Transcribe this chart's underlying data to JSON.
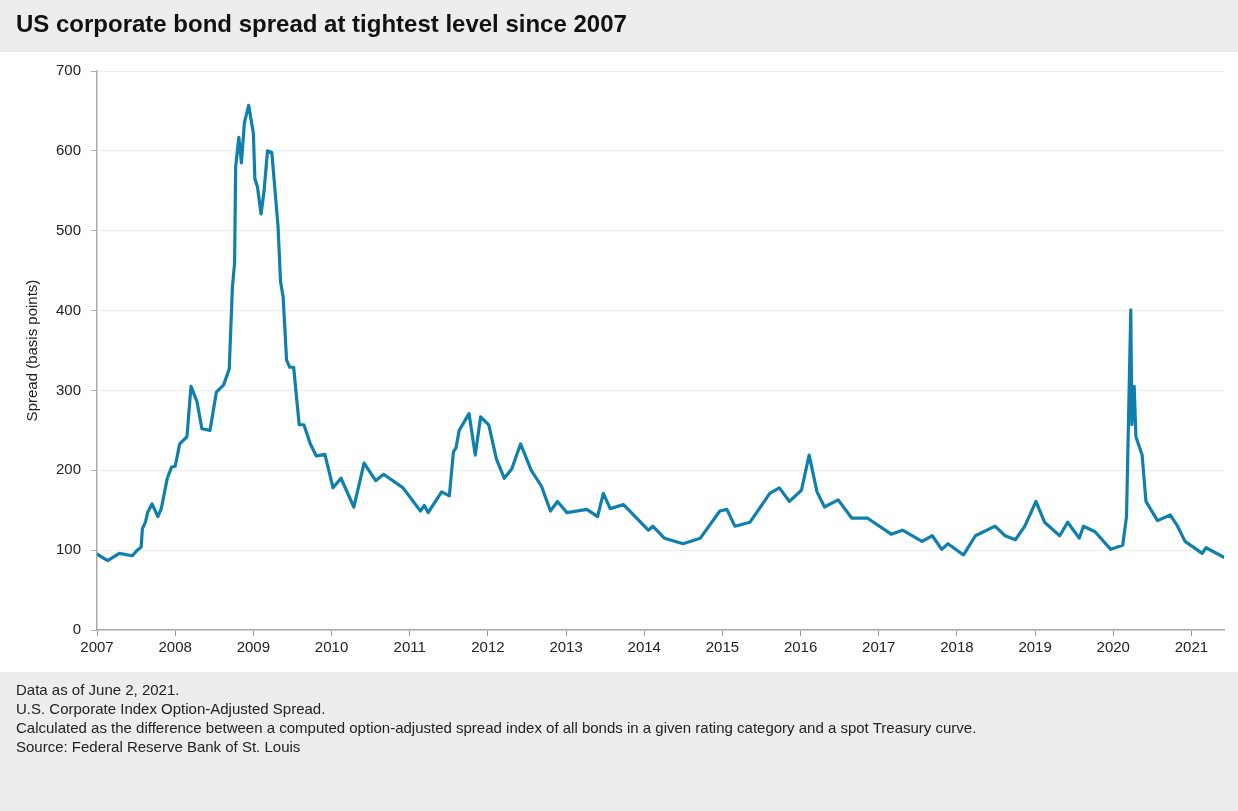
{
  "chart_data": {
    "type": "line",
    "title": "US corporate bond spread at tightest level since 2007",
    "ylabel": "Spread (basis points)",
    "x": [
      "2007-01-01",
      "2007-02-20",
      "2007-04-15",
      "2007-06-15",
      "2007-07-08",
      "2007-07-26",
      "2007-08-01",
      "2007-08-15",
      "2007-08-25",
      "2007-09-15",
      "2007-10-12",
      "2007-10-28",
      "2007-11-25",
      "2007-12-15",
      "2008-01-01",
      "2008-01-22",
      "2008-02-25",
      "2008-03-15",
      "2008-04-12",
      "2008-05-05",
      "2008-06-12",
      "2008-07-12",
      "2008-08-15",
      "2008-09-10",
      "2008-09-25",
      "2008-10-05",
      "2008-10-10",
      "2008-10-25",
      "2008-11-06",
      "2008-11-20",
      "2008-12-10",
      "2009-01-01",
      "2009-01-08",
      "2009-01-20",
      "2009-02-06",
      "2009-02-20",
      "2009-03-08",
      "2009-03-28",
      "2009-04-26",
      "2009-05-08",
      "2009-05-20",
      "2009-06-05",
      "2009-06-20",
      "2009-07-08",
      "2009-08-03",
      "2009-08-25",
      "2009-09-24",
      "2009-10-22",
      "2009-12-01",
      "2010-01-08",
      "2010-02-14",
      "2010-04-15",
      "2010-06-02",
      "2010-07-26",
      "2010-09-01",
      "2010-12-01",
      "2011-02-20",
      "2011-03-10",
      "2011-03-28",
      "2011-05-30",
      "2011-07-05",
      "2011-07-24",
      "2011-08-05",
      "2011-08-20",
      "2011-10-05",
      "2011-11-03",
      "2011-11-28",
      "2012-01-05",
      "2012-02-10",
      "2012-03-18",
      "2012-04-22",
      "2012-06-02",
      "2012-07-22",
      "2012-09-08",
      "2012-10-20",
      "2012-11-22",
      "2013-01-05",
      "2013-04-08",
      "2013-05-28",
      "2013-06-24",
      "2013-07-26",
      "2013-09-26",
      "2013-11-13",
      "2014-01-20",
      "2014-02-10",
      "2014-04-05",
      "2014-07-01",
      "2014-09-20",
      "2014-12-20",
      "2015-01-22",
      "2015-02-28",
      "2015-05-10",
      "2015-08-10",
      "2015-09-24",
      "2015-11-10",
      "2016-01-05",
      "2016-02-10",
      "2016-03-18",
      "2016-04-22",
      "2016-06-25",
      "2016-08-28",
      "2016-11-10",
      "2017-02-28",
      "2017-04-22",
      "2017-07-22",
      "2017-09-08",
      "2017-10-22",
      "2017-11-20",
      "2018-02-01",
      "2018-03-28",
      "2018-06-28",
      "2018-08-14",
      "2018-10-01",
      "2018-11-14",
      "2019-01-05",
      "2019-02-14",
      "2019-04-26",
      "2019-06-02",
      "2019-07-26",
      "2019-08-15",
      "2019-10-08",
      "2019-12-20",
      "2020-02-14",
      "2020-03-03",
      "2020-03-23",
      "2020-03-28",
      "2020-04-08",
      "2020-04-16",
      "2020-05-15",
      "2020-06-02",
      "2020-07-26",
      "2020-09-24",
      "2020-10-28",
      "2020-12-02",
      "2021-02-20",
      "2021-03-10",
      "2021-06-02"
    ],
    "series": [
      {
        "color": "#0f80ae",
        "values": [
          95,
          87,
          96,
          93,
          100,
          104,
          127,
          135,
          147,
          158,
          142,
          152,
          190,
          204,
          205,
          233,
          242,
          305,
          286,
          252,
          250,
          298,
          307,
          327,
          430,
          459,
          580,
          617,
          585,
          635,
          657,
          622,
          565,
          555,
          521,
          550,
          600,
          598,
          506,
          436,
          417,
          338,
          329,
          329,
          257,
          257,
          233,
          218,
          220,
          178,
          190,
          154,
          209,
          187,
          195,
          178,
          149,
          156,
          147,
          173,
          168,
          223,
          228,
          250,
          271,
          219,
          267,
          257,
          214,
          190,
          202,
          233,
          200,
          180,
          149,
          161,
          147,
          151,
          142,
          171,
          152,
          157,
          144,
          125,
          130,
          115,
          108,
          115,
          149,
          151,
          130,
          135,
          171,
          178,
          161,
          175,
          219,
          173,
          154,
          163,
          140,
          140,
          120,
          125,
          111,
          118,
          101,
          108,
          94,
          118,
          130,
          118,
          113,
          130,
          161,
          135,
          118,
          135,
          115,
          130,
          123,
          101,
          106,
          142,
          401,
          257,
          305,
          242,
          219,
          161,
          137,
          144,
          130,
          111,
          96,
          103,
          91
        ]
      }
    ],
    "xlim": [
      "2007-01-01",
      "2021-06-02"
    ],
    "xticks": [
      "2007",
      "2008",
      "2009",
      "2010",
      "2011",
      "2012",
      "2013",
      "2014",
      "2015",
      "2016",
      "2017",
      "2018",
      "2019",
      "2020",
      "2021"
    ],
    "ylim": [
      0,
      700
    ],
    "yticks": [
      0,
      100,
      200,
      300,
      400,
      500,
      600,
      700
    ],
    "grid": "y",
    "marker": "none",
    "line_style": "solid",
    "annotations": [
      "Data as of June 2, 2021.",
      "U.S. Corporate Index Option-Adjusted Spread.",
      "Calculated as the difference between a computed option-adjusted spread index of all bonds in a given rating category and a spot Treasury curve.",
      "Source: Federal Reserve Bank of St. Louis"
    ]
  }
}
